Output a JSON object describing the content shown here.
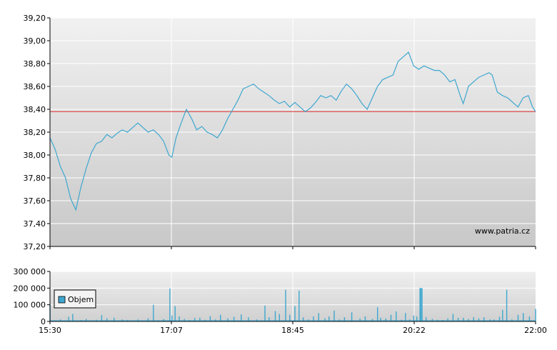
{
  "watermark": "www.patria.cz",
  "colors": {
    "price_line": "#3ea7cf",
    "reference_line": "#e02a2a",
    "volume_bar": "#3ea7cf",
    "grid": "#ffffff"
  },
  "chart_data": [
    {
      "type": "line",
      "title": "",
      "xlabel": "",
      "ylabel": "",
      "ylim": [
        37.2,
        39.2
      ],
      "y_ticks": [
        "37,20",
        "37,40",
        "37,60",
        "37,80",
        "38,00",
        "38,20",
        "38,40",
        "38,60",
        "38,80",
        "39,00",
        "39,20"
      ],
      "x_ticks": [
        "15:30",
        "17:07",
        "18:45",
        "20:22",
        "22:00"
      ],
      "reference_value": 38.38,
      "grid": true,
      "series": [
        {
          "values": [
            [
              0,
              38.15
            ],
            [
              5,
              38.05
            ],
            [
              10,
              37.9
            ],
            [
              15,
              37.8
            ],
            [
              20,
              37.62
            ],
            [
              25,
              37.52
            ],
            [
              30,
              37.72
            ],
            [
              35,
              37.88
            ],
            [
              40,
              38.02
            ],
            [
              45,
              38.1
            ],
            [
              50,
              38.12
            ],
            [
              55,
              38.18
            ],
            [
              60,
              38.15
            ],
            [
              65,
              38.19
            ],
            [
              70,
              38.22
            ],
            [
              75,
              38.2
            ],
            [
              80,
              38.24
            ],
            [
              85,
              38.28
            ],
            [
              90,
              38.24
            ],
            [
              95,
              38.2
            ],
            [
              100,
              38.22
            ],
            [
              105,
              38.18
            ],
            [
              110,
              38.12
            ],
            [
              115,
              38.0
            ],
            [
              118,
              37.98
            ],
            [
              122,
              38.15
            ],
            [
              127,
              38.28
            ],
            [
              132,
              38.4
            ],
            [
              137,
              38.32
            ],
            [
              142,
              38.22
            ],
            [
              147,
              38.25
            ],
            [
              152,
              38.2
            ],
            [
              157,
              38.18
            ],
            [
              162,
              38.15
            ],
            [
              167,
              38.22
            ],
            [
              172,
              38.32
            ],
            [
              177,
              38.4
            ],
            [
              182,
              38.48
            ],
            [
              187,
              38.58
            ],
            [
              192,
              38.6
            ],
            [
              197,
              38.62
            ],
            [
              202,
              38.58
            ],
            [
              207,
              38.55
            ],
            [
              212,
              38.52
            ],
            [
              217,
              38.48
            ],
            [
              222,
              38.45
            ],
            [
              227,
              38.47
            ],
            [
              232,
              38.42
            ],
            [
              237,
              38.46
            ],
            [
              242,
              38.42
            ],
            [
              247,
              38.38
            ],
            [
              252,
              38.41
            ],
            [
              257,
              38.46
            ],
            [
              262,
              38.52
            ],
            [
              267,
              38.5
            ],
            [
              272,
              38.52
            ],
            [
              277,
              38.48
            ],
            [
              282,
              38.56
            ],
            [
              287,
              38.62
            ],
            [
              292,
              38.58
            ],
            [
              297,
              38.52
            ],
            [
              302,
              38.45
            ],
            [
              307,
              38.4
            ],
            [
              312,
              38.5
            ],
            [
              317,
              38.6
            ],
            [
              322,
              38.66
            ],
            [
              327,
              38.68
            ],
            [
              332,
              38.7
            ],
            [
              337,
              38.82
            ],
            [
              342,
              38.86
            ],
            [
              347,
              38.9
            ],
            [
              352,
              38.78
            ],
            [
              357,
              38.75
            ],
            [
              362,
              38.78
            ],
            [
              367,
              38.76
            ],
            [
              372,
              38.74
            ],
            [
              377,
              38.74
            ],
            [
              382,
              38.7
            ],
            [
              387,
              38.64
            ],
            [
              392,
              38.66
            ],
            [
              397,
              38.52
            ],
            [
              400,
              38.45
            ],
            [
              405,
              38.6
            ],
            [
              410,
              38.64
            ],
            [
              415,
              38.68
            ],
            [
              420,
              38.7
            ],
            [
              425,
              38.72
            ],
            [
              428,
              38.7
            ],
            [
              433,
              38.55
            ],
            [
              438,
              38.52
            ],
            [
              443,
              38.5
            ],
            [
              448,
              38.46
            ],
            [
              453,
              38.42
            ],
            [
              458,
              38.5
            ],
            [
              463,
              38.52
            ],
            [
              467,
              38.42
            ],
            [
              470,
              38.38
            ]
          ]
        }
      ]
    },
    {
      "type": "bar",
      "title": "",
      "legend": [
        "Objem"
      ],
      "legend_position": "left",
      "ylim": [
        0,
        300000
      ],
      "y_ticks": [
        "0",
        "100 000",
        "200 000",
        "300 000"
      ],
      "x_ticks": [
        "15:30",
        "17:07",
        "18:45",
        "20:22",
        "22:00"
      ],
      "grid": true,
      "series": [
        {
          "name": "Objem",
          "values": [
            [
              0,
              100000
            ],
            [
              10,
              12000
            ],
            [
              18,
              28000
            ],
            [
              22,
              45000
            ],
            [
              30,
              8000
            ],
            [
              35,
              15000
            ],
            [
              45,
              10000
            ],
            [
              50,
              38000
            ],
            [
              55,
              18000
            ],
            [
              62,
              22000
            ],
            [
              70,
              12000
            ],
            [
              75,
              9000
            ],
            [
              85,
              12000
            ],
            [
              95,
              18000
            ],
            [
              100,
              100000
            ],
            [
              105,
              6000
            ],
            [
              110,
              14000
            ],
            [
              116,
              198000
            ],
            [
              118,
              35000
            ],
            [
              121,
              92000
            ],
            [
              125,
              30000
            ],
            [
              130,
              15000
            ],
            [
              135,
              8000
            ],
            [
              140,
              20000
            ],
            [
              145,
              22000
            ],
            [
              150,
              10000
            ],
            [
              155,
              32000
            ],
            [
              160,
              12000
            ],
            [
              165,
              40000
            ],
            [
              172,
              18000
            ],
            [
              178,
              28000
            ],
            [
              185,
              42000
            ],
            [
              192,
              25000
            ],
            [
              200,
              12000
            ],
            [
              208,
              95000
            ],
            [
              212,
              25000
            ],
            [
              218,
              62000
            ],
            [
              222,
              45000
            ],
            [
              228,
              190000
            ],
            [
              232,
              40000
            ],
            [
              237,
              92000
            ],
            [
              241,
              185000
            ],
            [
              245,
              24000
            ],
            [
              250,
              12000
            ],
            [
              255,
              30000
            ],
            [
              260,
              50000
            ],
            [
              266,
              18000
            ],
            [
              270,
              30000
            ],
            [
              275,
              65000
            ],
            [
              280,
              12000
            ],
            [
              285,
              25000
            ],
            [
              292,
              55000
            ],
            [
              300,
              18000
            ],
            [
              305,
              30000
            ],
            [
              312,
              15000
            ],
            [
              317,
              85000
            ],
            [
              320,
              22000
            ],
            [
              325,
              18000
            ],
            [
              330,
              40000
            ],
            [
              335,
              60000
            ],
            [
              340,
              10000
            ],
            [
              344,
              50000
            ],
            [
              348,
              12000
            ],
            [
              352,
              35000
            ],
            [
              355,
              30000
            ],
            [
              358,
              200000
            ],
            [
              359,
              200000
            ],
            [
              360,
              200000
            ],
            [
              364,
              25000
            ],
            [
              370,
              15000
            ],
            [
              375,
              10000
            ],
            [
              380,
              8000
            ],
            [
              385,
              18000
            ],
            [
              390,
              45000
            ],
            [
              395,
              22000
            ],
            [
              400,
              22000
            ],
            [
              405,
              15000
            ],
            [
              410,
              25000
            ],
            [
              415,
              18000
            ],
            [
              420,
              25000
            ],
            [
              426,
              12000
            ],
            [
              430,
              12000
            ],
            [
              435,
              28000
            ],
            [
              438,
              70000
            ],
            [
              442,
              190000
            ],
            [
              447,
              12000
            ],
            [
              453,
              40000
            ],
            [
              458,
              50000
            ],
            [
              464,
              30000
            ],
            [
              470,
              75000
            ]
          ]
        }
      ]
    }
  ]
}
